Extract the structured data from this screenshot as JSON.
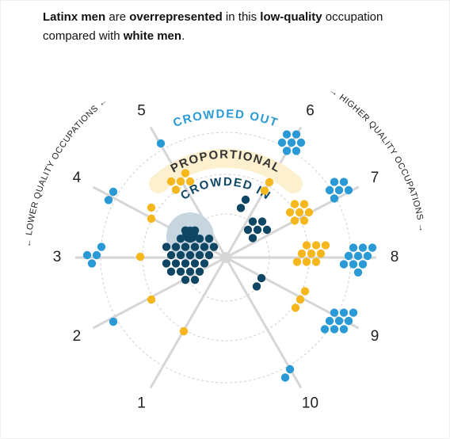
{
  "title_segments": [
    {
      "text": "Latinx men",
      "bold": true
    },
    {
      "text": " are ",
      "bold": false
    },
    {
      "text": "overrepresented",
      "bold": true
    },
    {
      "text": " in this ",
      "bold": false
    },
    {
      "text": "low-quality",
      "bold": true
    },
    {
      "text": " occupation compared with ",
      "bold": false
    },
    {
      "text": "white men",
      "bold": true
    },
    {
      "text": ".",
      "bold": false
    }
  ],
  "ring_labels": {
    "outer": "CROWDED OUT",
    "middle": "PROPORTIONAL",
    "inner": "CROWDED IN"
  },
  "axis_labels": {
    "left": "← LOWER QUALITY OCCUPATIONS ←",
    "right": "→ HIGHER QUALITY OCCUPATIONS →"
  },
  "spokes": [
    "1",
    "2",
    "3",
    "4",
    "5",
    "6",
    "7",
    "8",
    "9",
    "10"
  ],
  "colors": {
    "crowded_out": "#2a9ad6",
    "proportional": "#f5b71b",
    "crowded_in": "#0e4664"
  }
}
